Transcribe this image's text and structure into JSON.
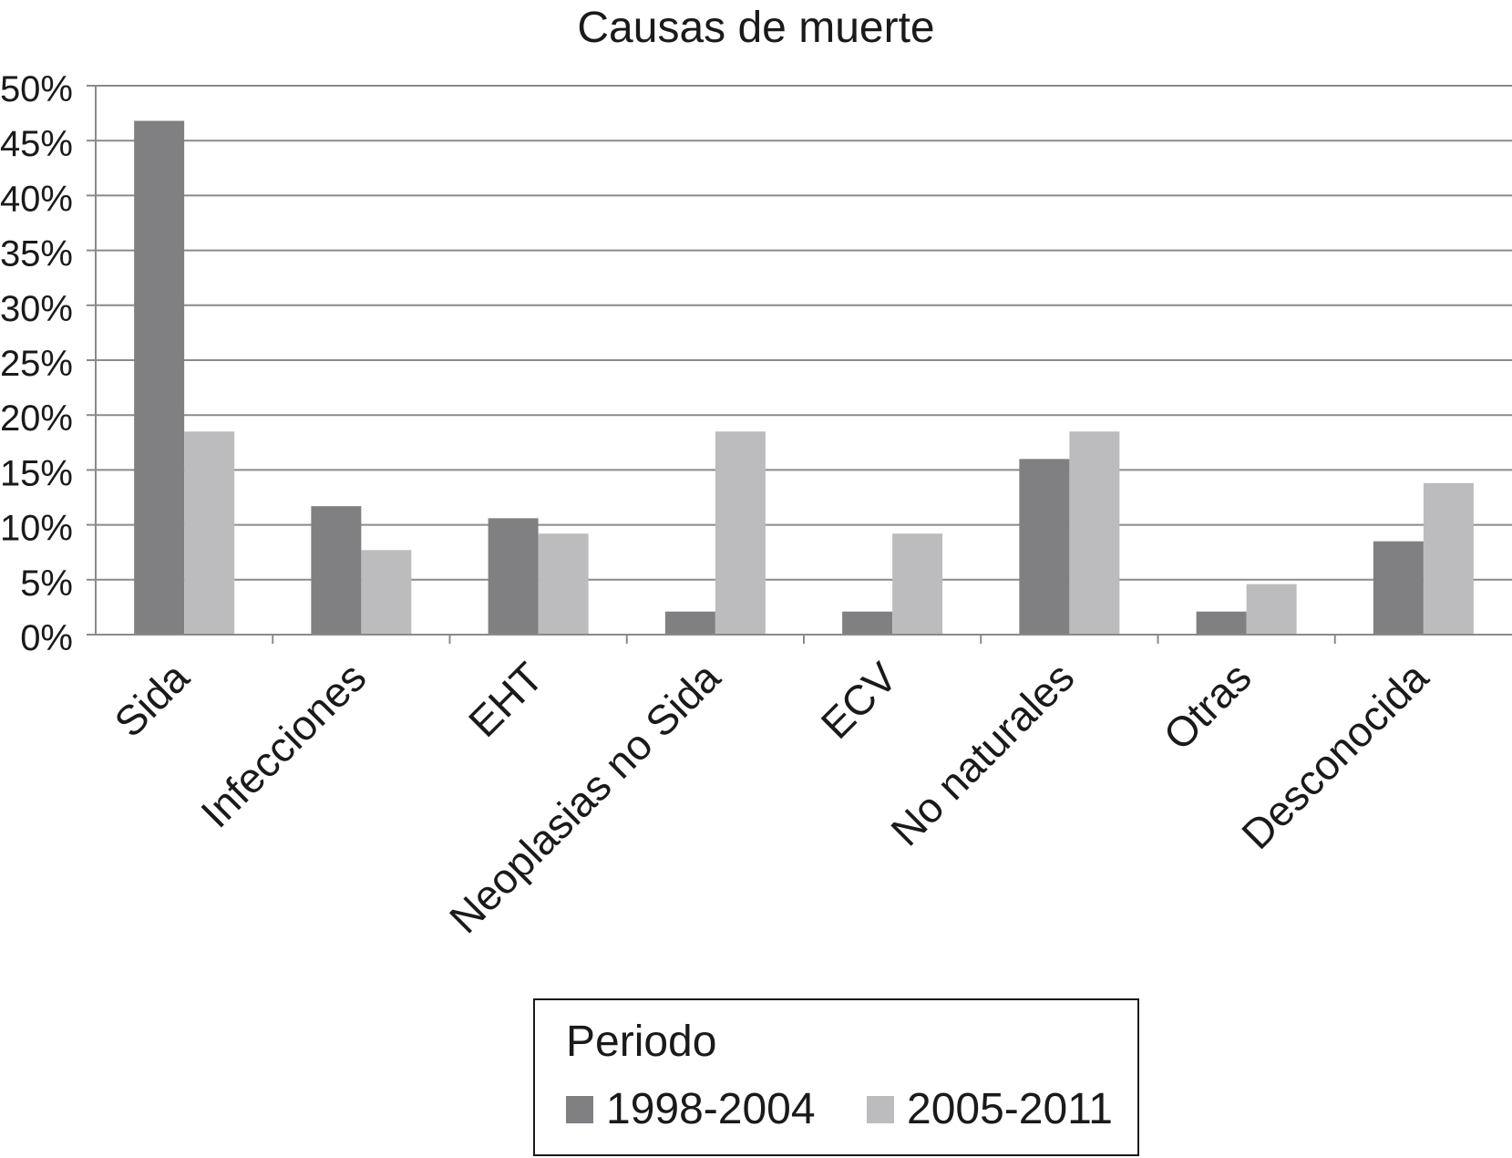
{
  "chart_data": {
    "type": "bar",
    "title": "Causas de muerte",
    "xlabel": "",
    "ylabel": "",
    "ylim": [
      0,
      50
    ],
    "y_ticks": [
      "0%",
      "5%",
      "10%",
      "15%",
      "20%",
      "25%",
      "30%",
      "35%",
      "40%",
      "45%",
      "50%"
    ],
    "y_tick_values": [
      0,
      5,
      10,
      15,
      20,
      25,
      30,
      35,
      40,
      45,
      50
    ],
    "grid": true,
    "legend_position": "bottom",
    "legend_title": "Periodo",
    "categories": [
      "Sida",
      "Infecciones",
      "EHT",
      "Neoplasias no Sida",
      "ECV",
      "No naturales",
      "Otras",
      "Desconocida"
    ],
    "series": [
      {
        "name": "1998-2004",
        "color": "#808083",
        "values": [
          46.8,
          11.7,
          10.6,
          2.1,
          2.1,
          16.0,
          2.1,
          8.5
        ]
      },
      {
        "name": "2005-2011",
        "color": "#bcbcbf",
        "values": [
          18.5,
          7.7,
          9.2,
          18.5,
          9.2,
          18.5,
          4.6,
          13.8
        ]
      }
    ]
  }
}
